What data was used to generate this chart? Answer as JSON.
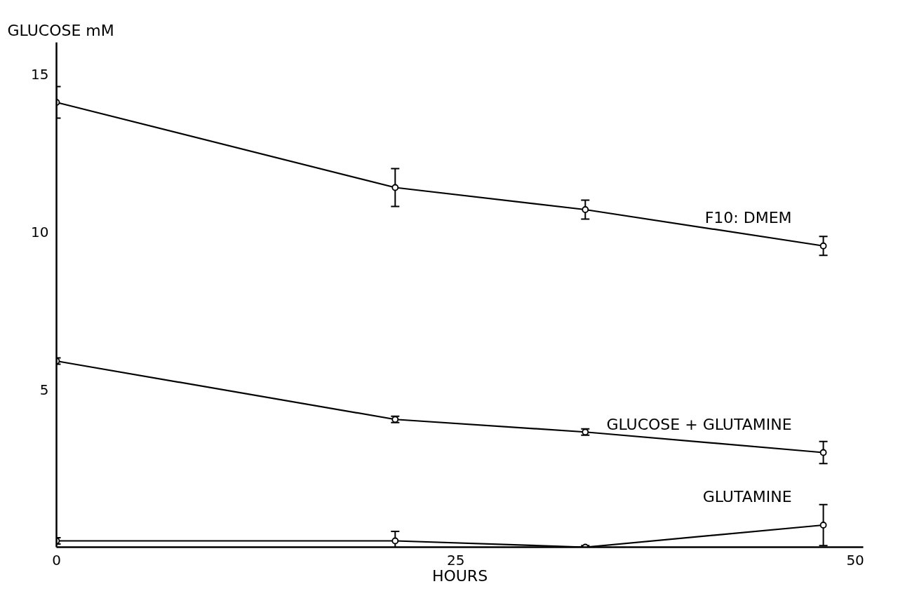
{
  "chart_data": {
    "type": "line",
    "xlabel": "HOURS",
    "ylabel": "GLUCOSE mM",
    "xlim": [
      0,
      50.5
    ],
    "ylim": [
      0,
      16
    ],
    "xticks": [
      0,
      25,
      50
    ],
    "yticks": [
      5,
      10,
      15
    ],
    "marker": "circle",
    "grid": false,
    "series": [
      {
        "name": "F10: DMEM",
        "color": "#000000",
        "x": [
          0,
          21.2,
          33.1,
          48
        ],
        "values": [
          14.1,
          11.4,
          10.7,
          9.55
        ],
        "errors": [
          0.5,
          0.6,
          0.3,
          0.3
        ]
      },
      {
        "name": "GLUCOSE + GLUTAMINE",
        "color": "#000000",
        "x": [
          0,
          21.2,
          33.1,
          48
        ],
        "values": [
          5.9,
          4.05,
          3.65,
          3.0
        ],
        "errors": [
          0.1,
          0.1,
          0.1,
          0.35
        ]
      },
      {
        "name": "GLUTAMINE",
        "color": "#000000",
        "x": [
          0,
          21.2,
          33.1,
          48
        ],
        "values": [
          0.2,
          0.2,
          0.0,
          0.7
        ],
        "errors": [
          0.1,
          0.3,
          0.05,
          0.65
        ]
      }
    ]
  }
}
